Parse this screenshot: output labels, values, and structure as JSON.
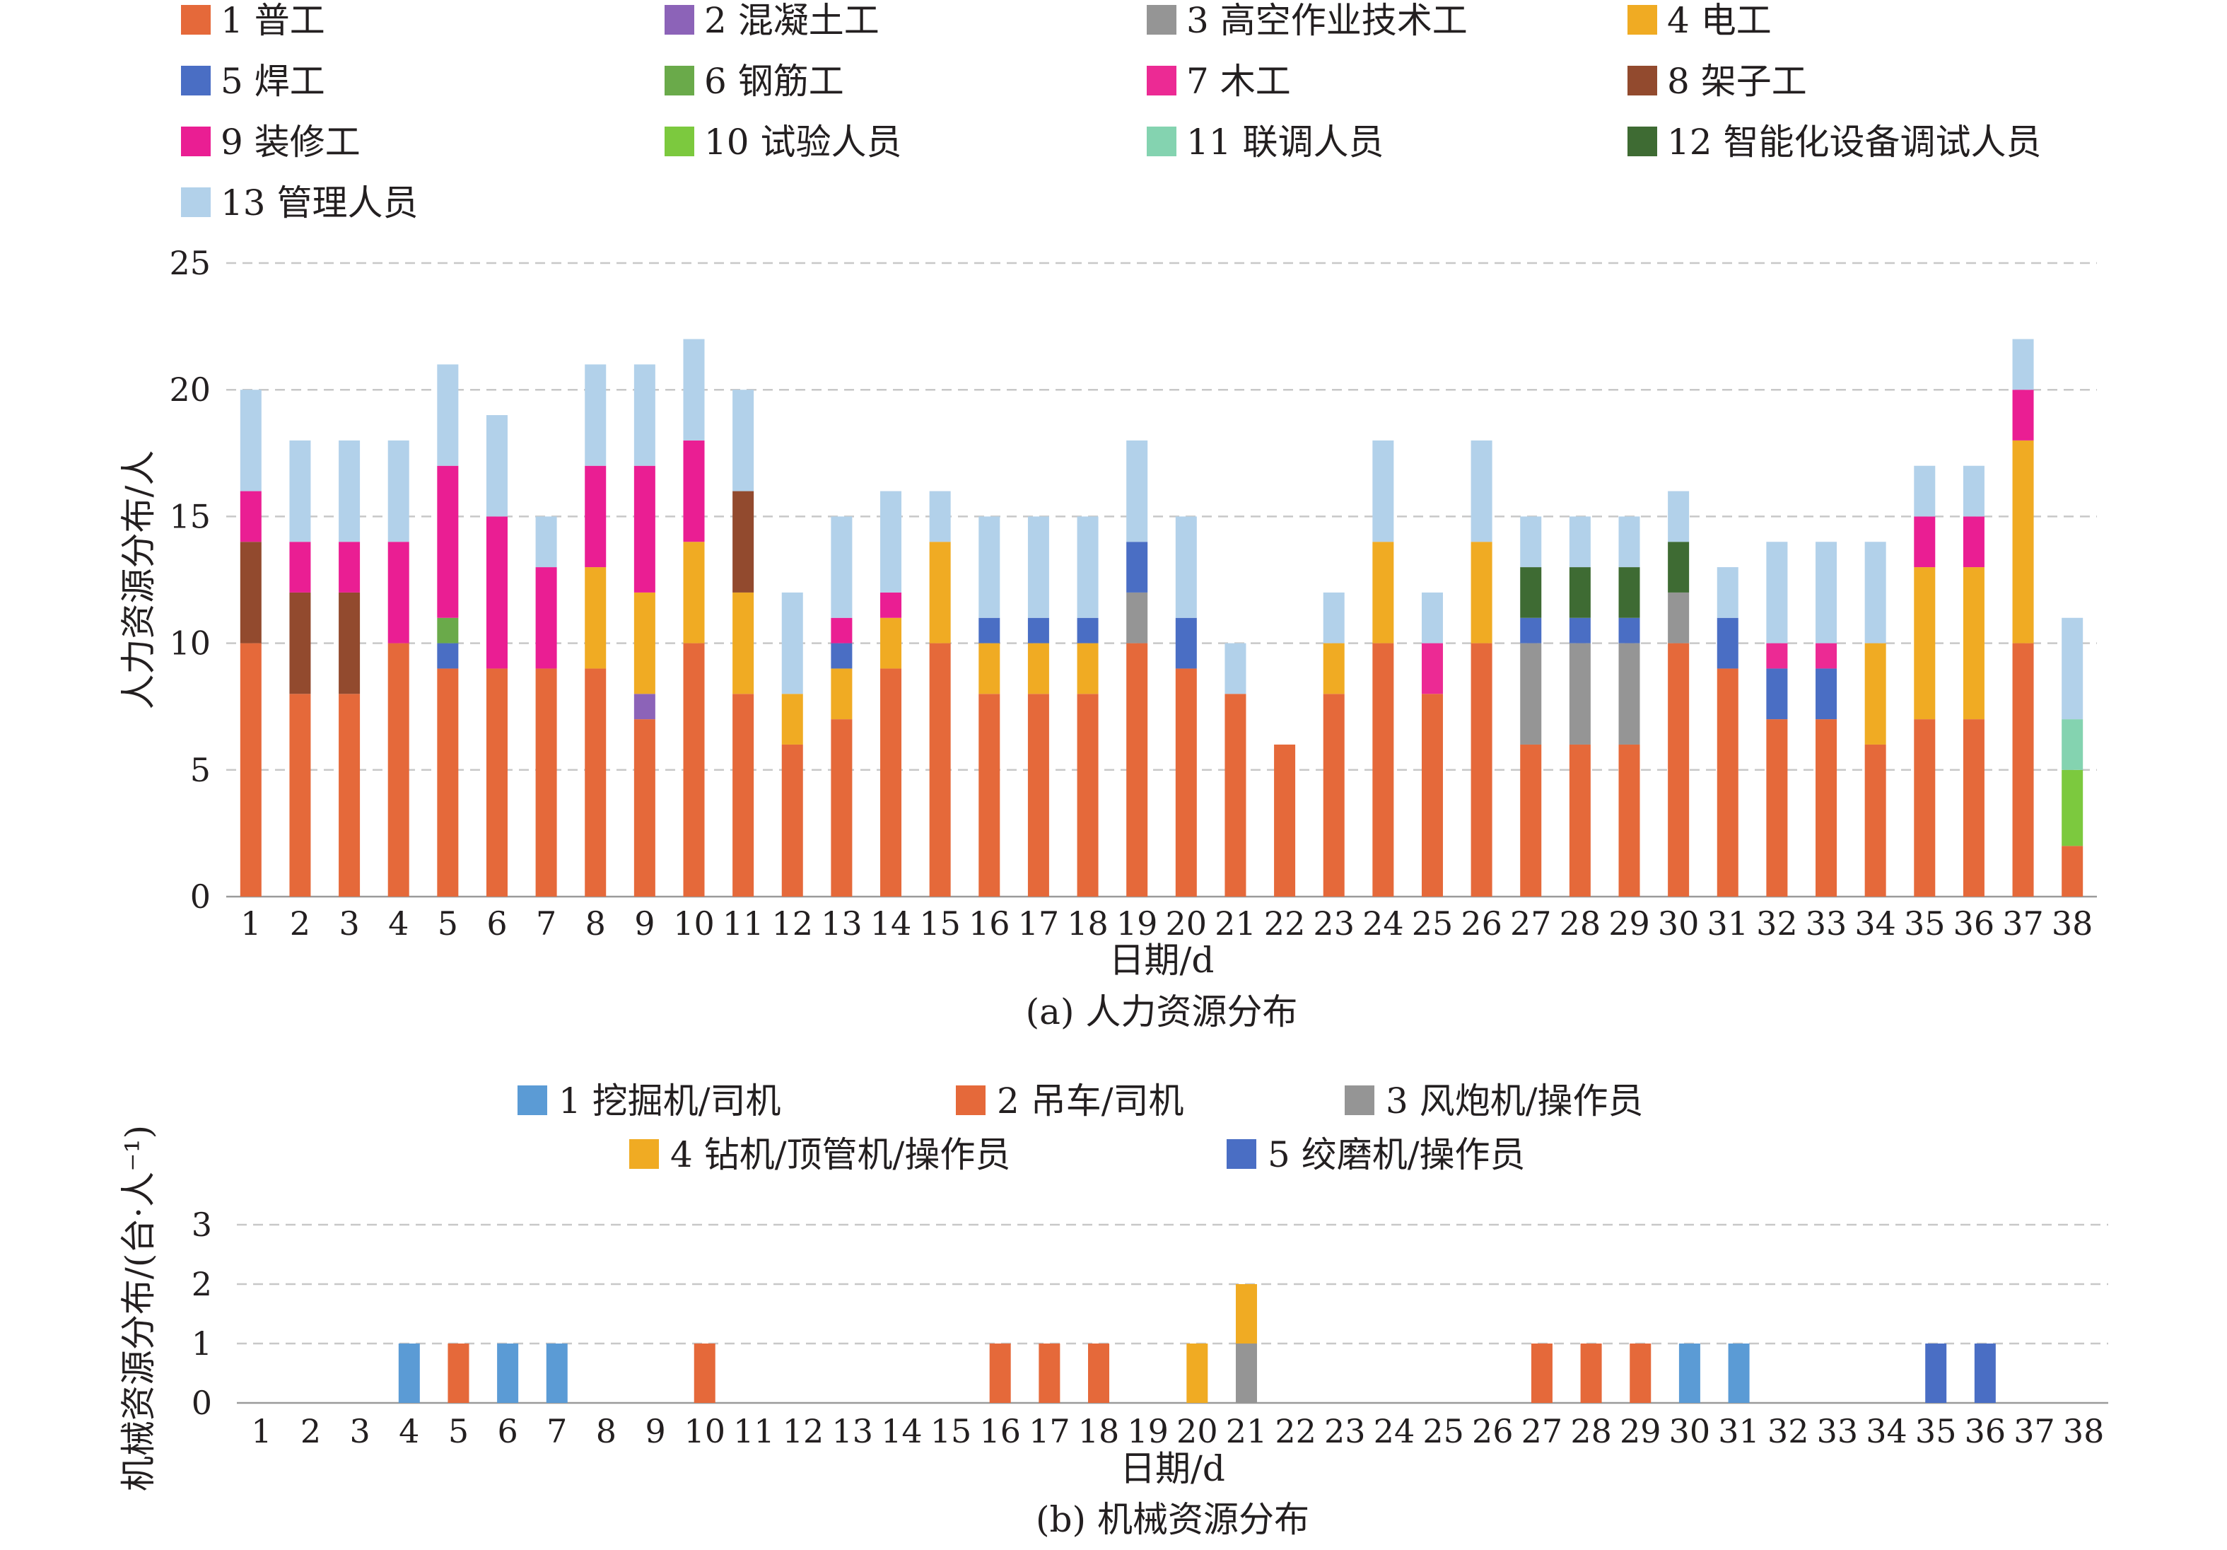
{
  "chart_data": [
    {
      "type": "bar",
      "stacked": true,
      "caption": "(a) 人力资源分布",
      "xlabel": "日期/d",
      "ylabel": "人力资源分布/人",
      "ylim": [
        0,
        25
      ],
      "yticks": [
        0,
        5,
        10,
        15,
        20,
        25
      ],
      "grid": true,
      "legend_position": "top",
      "categories": [
        "1",
        "2",
        "3",
        "4",
        "5",
        "6",
        "7",
        "8",
        "9",
        "10",
        "11",
        "12",
        "13",
        "14",
        "15",
        "16",
        "17",
        "18",
        "19",
        "20",
        "21",
        "22",
        "23",
        "24",
        "25",
        "26",
        "27",
        "28",
        "29",
        "30",
        "31",
        "32",
        "33",
        "34",
        "35",
        "36",
        "37",
        "38"
      ],
      "series": [
        {
          "name": "1 普工",
          "color": "#e5693a",
          "values": [
            10,
            8,
            8,
            10,
            9,
            9,
            9,
            9,
            7,
            10,
            8,
            6,
            7,
            9,
            10,
            8,
            8,
            8,
            10,
            9,
            8,
            6,
            8,
            10,
            8,
            10,
            6,
            6,
            6,
            10,
            9,
            7,
            7,
            6,
            7,
            7,
            10,
            2
          ]
        },
        {
          "name": "2 混凝土工",
          "color": "#8c63b8",
          "values": [
            0,
            0,
            0,
            0,
            0,
            0,
            0,
            0,
            1,
            0,
            0,
            0,
            0,
            0,
            0,
            0,
            0,
            0,
            0,
            0,
            0,
            0,
            0,
            0,
            0,
            0,
            0,
            0,
            0,
            0,
            0,
            0,
            0,
            0,
            0,
            0,
            0,
            0
          ]
        },
        {
          "name": "3 高空作业技术工",
          "color": "#959595",
          "values": [
            0,
            0,
            0,
            0,
            0,
            0,
            0,
            0,
            0,
            0,
            0,
            0,
            0,
            0,
            0,
            0,
            0,
            0,
            2,
            0,
            0,
            0,
            0,
            0,
            0,
            0,
            4,
            4,
            4,
            2,
            0,
            0,
            0,
            0,
            0,
            0,
            0,
            0
          ]
        },
        {
          "name": "4 电工",
          "color": "#f0ab23",
          "values": [
            0,
            0,
            0,
            0,
            0,
            0,
            0,
            4,
            4,
            4,
            4,
            2,
            2,
            2,
            4,
            2,
            2,
            2,
            0,
            0,
            0,
            0,
            2,
            4,
            0,
            4,
            0,
            0,
            0,
            0,
            0,
            0,
            0,
            4,
            6,
            6,
            8,
            0
          ]
        },
        {
          "name": "5 焊工",
          "color": "#4a6ec4",
          "values": [
            0,
            0,
            0,
            0,
            1,
            0,
            0,
            0,
            0,
            0,
            0,
            0,
            1,
            0,
            0,
            1,
            1,
            1,
            2,
            2,
            0,
            0,
            0,
            0,
            0,
            0,
            1,
            1,
            1,
            0,
            2,
            2,
            2,
            0,
            0,
            0,
            0,
            0
          ]
        },
        {
          "name": "6 钢筋工",
          "color": "#6aaa4a",
          "values": [
            0,
            0,
            0,
            0,
            1,
            0,
            0,
            0,
            0,
            0,
            0,
            0,
            0,
            0,
            0,
            0,
            0,
            0,
            0,
            0,
            0,
            0,
            0,
            0,
            0,
            0,
            0,
            0,
            0,
            0,
            0,
            0,
            0,
            0,
            0,
            0,
            0,
            0
          ]
        },
        {
          "name": "7 木工",
          "color": "#ec2a94",
          "values": [
            0,
            0,
            0,
            0,
            0,
            0,
            0,
            0,
            0,
            0,
            0,
            0,
            0,
            0,
            0,
            0,
            0,
            0,
            0,
            0,
            0,
            0,
            0,
            0,
            2,
            0,
            0,
            0,
            0,
            0,
            0,
            1,
            1,
            0,
            0,
            0,
            0,
            0
          ]
        },
        {
          "name": "8 架子工",
          "color": "#924a2e",
          "values": [
            4,
            4,
            4,
            0,
            0,
            0,
            0,
            0,
            0,
            0,
            4,
            0,
            0,
            0,
            0,
            0,
            0,
            0,
            0,
            0,
            0,
            0,
            0,
            0,
            0,
            0,
            0,
            0,
            0,
            0,
            0,
            0,
            0,
            0,
            0,
            0,
            0,
            0
          ]
        },
        {
          "name": "9 装修工",
          "color": "#ea1e93",
          "values": [
            2,
            2,
            2,
            4,
            6,
            6,
            4,
            4,
            5,
            4,
            0,
            0,
            1,
            1,
            0,
            0,
            0,
            0,
            0,
            0,
            0,
            0,
            0,
            0,
            0,
            0,
            0,
            0,
            0,
            0,
            0,
            0,
            0,
            0,
            2,
            2,
            2,
            0
          ]
        },
        {
          "name": "10 试验人员",
          "color": "#7cc93e",
          "values": [
            0,
            0,
            0,
            0,
            0,
            0,
            0,
            0,
            0,
            0,
            0,
            0,
            0,
            0,
            0,
            0,
            0,
            0,
            0,
            0,
            0,
            0,
            0,
            0,
            0,
            0,
            0,
            0,
            0,
            0,
            0,
            0,
            0,
            0,
            0,
            0,
            0,
            3
          ]
        },
        {
          "name": "11 联调人员",
          "color": "#84d3b0",
          "values": [
            0,
            0,
            0,
            0,
            0,
            0,
            0,
            0,
            0,
            0,
            0,
            0,
            0,
            0,
            0,
            0,
            0,
            0,
            0,
            0,
            0,
            0,
            0,
            0,
            0,
            0,
            0,
            0,
            0,
            0,
            0,
            0,
            0,
            0,
            0,
            0,
            0,
            2
          ]
        },
        {
          "name": "12 智能化设备调试人员",
          "color": "#3e6b33",
          "values": [
            0,
            0,
            0,
            0,
            0,
            0,
            0,
            0,
            0,
            0,
            0,
            0,
            0,
            0,
            0,
            0,
            0,
            0,
            0,
            0,
            0,
            0,
            0,
            0,
            0,
            0,
            2,
            2,
            2,
            2,
            0,
            0,
            0,
            0,
            0,
            0,
            0,
            0
          ]
        },
        {
          "name": "13 管理人员",
          "color": "#b2d1ea",
          "values": [
            4,
            4,
            4,
            4,
            4,
            4,
            2,
            4,
            4,
            4,
            4,
            4,
            4,
            4,
            2,
            4,
            4,
            4,
            4,
            4,
            2,
            0,
            2,
            4,
            2,
            4,
            2,
            2,
            2,
            2,
            2,
            4,
            4,
            4,
            2,
            2,
            2,
            4
          ]
        }
      ]
    },
    {
      "type": "bar",
      "stacked": true,
      "caption": "(b) 机械资源分布",
      "xlabel": "日期/d",
      "ylabel": "机械资源分布/(台·人⁻¹)",
      "ylim": [
        0,
        3
      ],
      "yticks": [
        0,
        1,
        2,
        3
      ],
      "grid": true,
      "legend_position": "top",
      "categories": [
        "1",
        "2",
        "3",
        "4",
        "5",
        "6",
        "7",
        "8",
        "9",
        "10",
        "11",
        "12",
        "13",
        "14",
        "15",
        "16",
        "17",
        "18",
        "19",
        "20",
        "21",
        "22",
        "23",
        "24",
        "25",
        "26",
        "27",
        "28",
        "29",
        "30",
        "31",
        "32",
        "33",
        "34",
        "35",
        "36",
        "37",
        "38"
      ],
      "series": [
        {
          "name": "1 挖掘机/司机",
          "color": "#5b9bd5",
          "values": [
            0,
            0,
            0,
            1,
            0,
            1,
            1,
            0,
            0,
            0,
            0,
            0,
            0,
            0,
            0,
            0,
            0,
            0,
            0,
            0,
            0,
            0,
            0,
            0,
            0,
            0,
            0,
            0,
            0,
            1,
            1,
            0,
            0,
            0,
            0,
            0,
            0,
            0
          ]
        },
        {
          "name": "2 吊车/司机",
          "color": "#e5693a",
          "values": [
            0,
            0,
            0,
            0,
            1,
            0,
            0,
            0,
            0,
            1,
            0,
            0,
            0,
            0,
            0,
            1,
            1,
            1,
            0,
            0,
            0,
            0,
            0,
            0,
            0,
            0,
            1,
            1,
            1,
            0,
            0,
            0,
            0,
            0,
            0,
            0,
            0,
            0
          ]
        },
        {
          "name": "3 风炮机/操作员",
          "color": "#959595",
          "values": [
            0,
            0,
            0,
            0,
            0,
            0,
            0,
            0,
            0,
            0,
            0,
            0,
            0,
            0,
            0,
            0,
            0,
            0,
            0,
            0,
            1,
            0,
            0,
            0,
            0,
            0,
            0,
            0,
            0,
            0,
            0,
            0,
            0,
            0,
            0,
            0,
            0,
            0
          ]
        },
        {
          "name": "4 钻机/顶管机/操作员",
          "color": "#f0ab23",
          "values": [
            0,
            0,
            0,
            0,
            0,
            0,
            0,
            0,
            0,
            0,
            0,
            0,
            0,
            0,
            0,
            0,
            0,
            0,
            0,
            1,
            1,
            0,
            0,
            0,
            0,
            0,
            0,
            0,
            0,
            0,
            0,
            0,
            0,
            0,
            0,
            0,
            0,
            0
          ]
        },
        {
          "name": "5 绞磨机/操作员",
          "color": "#4a6ec4",
          "values": [
            0,
            0,
            0,
            0,
            0,
            0,
            0,
            0,
            0,
            0,
            0,
            0,
            0,
            0,
            0,
            0,
            0,
            0,
            0,
            0,
            0,
            0,
            0,
            0,
            0,
            0,
            0,
            0,
            0,
            0,
            0,
            0,
            0,
            0,
            1,
            1,
            0,
            0
          ]
        }
      ]
    }
  ]
}
